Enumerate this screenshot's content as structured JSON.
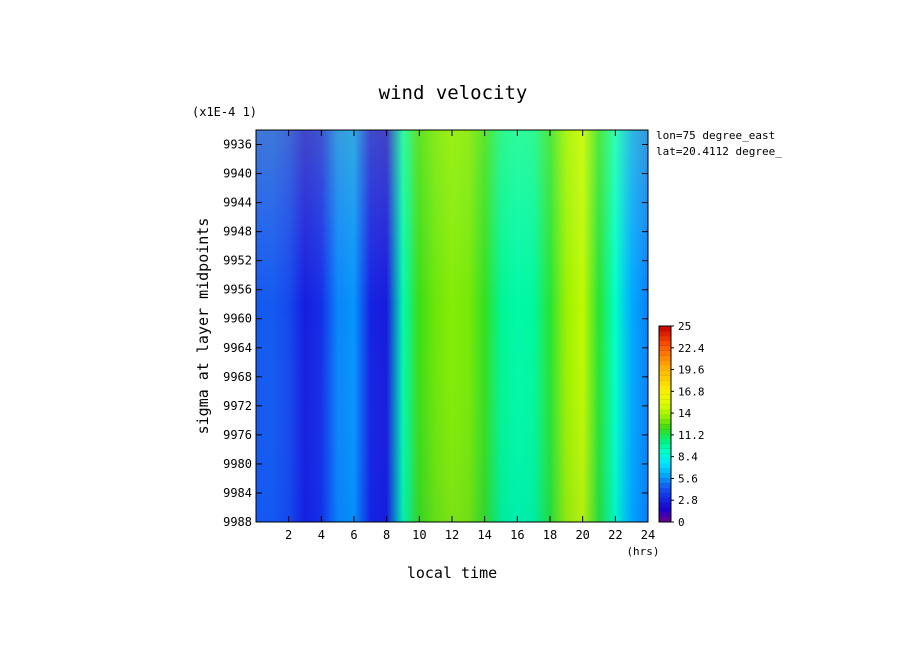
{
  "chart_data": {
    "type": "heatmap",
    "title": "wind velocity",
    "scale_note": "(x1E-4 1)",
    "xlabel": "local time",
    "xunit": "(hrs)",
    "ylabel": "sigma at layer midpoints",
    "xlim": [
      0,
      24
    ],
    "ylim": [
      9988,
      9934
    ],
    "x_ticks": [
      2,
      4,
      6,
      8,
      10,
      12,
      14,
      16,
      18,
      20,
      22,
      24
    ],
    "y_ticks": [
      9936,
      9940,
      9944,
      9948,
      9952,
      9956,
      9960,
      9964,
      9968,
      9972,
      9976,
      9980,
      9984,
      9988
    ],
    "annotations": [
      "lon=75 degree_east",
      "lat=20.4112 degree_"
    ],
    "colorbar": {
      "min": 0,
      "max": 25,
      "tick_labels": [
        "25",
        "22.4",
        "19.6",
        "16.8",
        "14",
        "11.2",
        "8.4",
        "5.6",
        "2.8",
        "0"
      ]
    },
    "x": [
      0,
      1,
      2,
      3,
      4,
      5,
      6,
      7,
      8,
      9,
      10,
      11,
      12,
      13,
      14,
      15,
      16,
      17,
      18,
      19,
      20,
      21,
      22,
      23,
      24
    ],
    "profile": [
      4.5,
      4.5,
      4.0,
      2.6,
      3.2,
      5.3,
      5.6,
      2.8,
      2.5,
      9.5,
      12.0,
      12.8,
      13.2,
      13.0,
      11.8,
      10.0,
      9.6,
      9.8,
      11.5,
      13.6,
      14.4,
      11.5,
      9.0,
      6.0,
      5.2
    ],
    "legend_position": "right"
  }
}
